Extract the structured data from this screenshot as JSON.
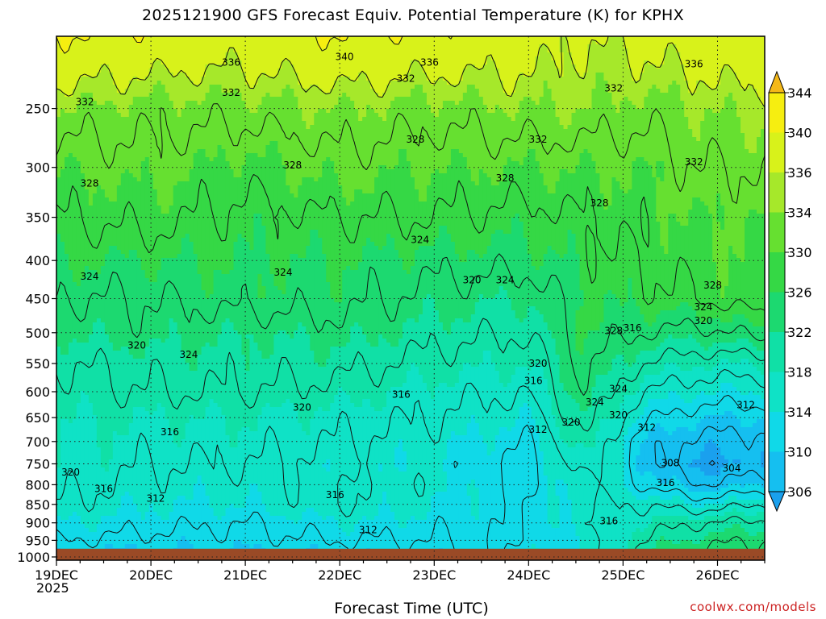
{
  "chart_data": {
    "type": "heatmap",
    "title": "2025121900 GFS Forecast Equiv. Potential Temperature (K) for KPHX",
    "xlabel": "Forecast Time (UTC)",
    "ylabel": "",
    "x_ticks": [
      "19DEC",
      "20DEC",
      "21DEC",
      "22DEC",
      "23DEC",
      "24DEC",
      "25DEC",
      "26DEC"
    ],
    "x_start_year": "2025",
    "x_range_days": [
      0,
      7.5
    ],
    "y_ticks": [
      250,
      300,
      350,
      400,
      450,
      500,
      550,
      600,
      650,
      700,
      750,
      800,
      850,
      900,
      950,
      1000
    ],
    "y_range": [
      200,
      1010
    ],
    "y_scale": "log",
    "surface_pressure_hPa": 975,
    "colorbar": {
      "ticks": [
        306,
        310,
        314,
        318,
        322,
        326,
        330,
        334,
        336,
        340,
        344
      ],
      "colors": [
        "#1aa0ee",
        "#15bff0",
        "#10d9e8",
        "#0fe2c6",
        "#10e0a6",
        "#1cd970",
        "#35d845",
        "#66e030",
        "#a6e82a",
        "#d8f21a",
        "#f6ee10",
        "#f4b818"
      ]
    },
    "profile_days": [
      0,
      1,
      2,
      3,
      4,
      5,
      5.6,
      6.2,
      6.8,
      7.5
    ],
    "profile_pressures": [
      200,
      250,
      300,
      350,
      400,
      450,
      500,
      550,
      600,
      650,
      700,
      750,
      800,
      850,
      900,
      950,
      975
    ],
    "profiles": [
      [
        340,
        334,
        330,
        328,
        326,
        324,
        322,
        320,
        319,
        318,
        318,
        318,
        317,
        316,
        314,
        312,
        311
      ],
      [
        339,
        333,
        331,
        329,
        326,
        324,
        323,
        321,
        320,
        318,
        317,
        316,
        315,
        314,
        313,
        311,
        310
      ],
      [
        338,
        333,
        329,
        327,
        326,
        325,
        322,
        321,
        320,
        318,
        317,
        316,
        315,
        314,
        312,
        311,
        310
      ],
      [
        340,
        334,
        331,
        328,
        326,
        325,
        323,
        321,
        319,
        317,
        316,
        315,
        316,
        316,
        314,
        312,
        311
      ],
      [
        339,
        333,
        330,
        328,
        325,
        323,
        321,
        319,
        317,
        316,
        315,
        314,
        315,
        314,
        313,
        312,
        311
      ],
      [
        338,
        334,
        330,
        327,
        325,
        322,
        320,
        318,
        316,
        314,
        312,
        311,
        311,
        312,
        312,
        312,
        313
      ],
      [
        336,
        334,
        330,
        328,
        327,
        326,
        326,
        325,
        324,
        322,
        320,
        318,
        316,
        316,
        316,
        314,
        314
      ],
      [
        337,
        333,
        330,
        329,
        328,
        327,
        324,
        320,
        316,
        313,
        310,
        310,
        312,
        316,
        318,
        320,
        321
      ],
      [
        338,
        334,
        332,
        330,
        329,
        328,
        323,
        318,
        314,
        310,
        307,
        305,
        308,
        314,
        320,
        323,
        324
      ],
      [
        339,
        335,
        332,
        330,
        330,
        330,
        325,
        318,
        314,
        310,
        307,
        306,
        310,
        316,
        321,
        324,
        325
      ]
    ],
    "contour_levels": [
      300,
      304,
      308,
      312,
      316,
      320,
      324,
      328,
      332,
      336,
      340,
      344
    ],
    "contour_labels": [
      {
        "text": "336",
        "day": 1.85,
        "p": 217
      },
      {
        "text": "340",
        "day": 3.05,
        "p": 213
      },
      {
        "text": "336",
        "day": 3.95,
        "p": 217
      },
      {
        "text": "332",
        "day": 3.7,
        "p": 228
      },
      {
        "text": "336",
        "day": 6.75,
        "p": 218
      },
      {
        "text": "332",
        "day": 0.3,
        "p": 245
      },
      {
        "text": "332",
        "day": 1.85,
        "p": 238
      },
      {
        "text": "332",
        "day": 5.9,
        "p": 235
      },
      {
        "text": "328",
        "day": 3.8,
        "p": 275
      },
      {
        "text": "332",
        "day": 5.1,
        "p": 275
      },
      {
        "text": "332",
        "day": 6.75,
        "p": 295
      },
      {
        "text": "328",
        "day": 0.35,
        "p": 315
      },
      {
        "text": "328",
        "day": 2.5,
        "p": 298
      },
      {
        "text": "328",
        "day": 4.75,
        "p": 310
      },
      {
        "text": "328",
        "day": 5.75,
        "p": 335
      },
      {
        "text": "324",
        "day": 3.85,
        "p": 375
      },
      {
        "text": "324",
        "day": 0.35,
        "p": 420
      },
      {
        "text": "324",
        "day": 2.4,
        "p": 415
      },
      {
        "text": "320",
        "day": 4.4,
        "p": 425
      },
      {
        "text": "324",
        "day": 4.75,
        "p": 425
      },
      {
        "text": "328",
        "day": 6.95,
        "p": 432
      },
      {
        "text": "324",
        "day": 6.85,
        "p": 462
      },
      {
        "text": "320",
        "day": 6.85,
        "p": 482
      },
      {
        "text": "328",
        "day": 5.9,
        "p": 497
      },
      {
        "text": "316",
        "day": 6.1,
        "p": 493
      },
      {
        "text": "320",
        "day": 0.85,
        "p": 520
      },
      {
        "text": "324",
        "day": 1.4,
        "p": 535
      },
      {
        "text": "320",
        "day": 5.1,
        "p": 550
      },
      {
        "text": "316",
        "day": 5.05,
        "p": 580
      },
      {
        "text": "324",
        "day": 5.95,
        "p": 595
      },
      {
        "text": "316",
        "day": 3.65,
        "p": 605
      },
      {
        "text": "324",
        "day": 5.7,
        "p": 620
      },
      {
        "text": "320",
        "day": 2.6,
        "p": 630
      },
      {
        "text": "312",
        "day": 7.3,
        "p": 625
      },
      {
        "text": "320",
        "day": 5.95,
        "p": 645
      },
      {
        "text": "312",
        "day": 5.1,
        "p": 675
      },
      {
        "text": "320",
        "day": 5.45,
        "p": 660
      },
      {
        "text": "312",
        "day": 6.25,
        "p": 670
      },
      {
        "text": "316",
        "day": 1.2,
        "p": 680
      },
      {
        "text": "308",
        "day": 6.5,
        "p": 748
      },
      {
        "text": "304",
        "day": 7.15,
        "p": 760
      },
      {
        "text": "320",
        "day": 0.15,
        "p": 770
      },
      {
        "text": "316",
        "day": 6.45,
        "p": 795
      },
      {
        "text": "316",
        "day": 0.5,
        "p": 810
      },
      {
        "text": "312",
        "day": 1.05,
        "p": 835
      },
      {
        "text": "316",
        "day": 2.95,
        "p": 825
      },
      {
        "text": "312",
        "day": 3.3,
        "p": 920
      },
      {
        "text": "316",
        "day": 5.85,
        "p": 895
      }
    ],
    "grid": "dotted",
    "legend": "right-colorbar"
  },
  "credit": "coolwx.com/models"
}
